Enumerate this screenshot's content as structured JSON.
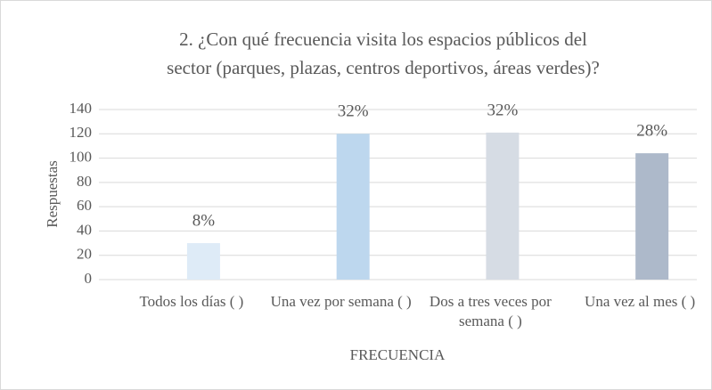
{
  "chart_data": {
    "type": "bar",
    "title": [
      "2. ¿Con qué frecuencia visita los espacios públicos del",
      "sector (parques, plazas, centros deportivos, áreas verdes)?"
    ],
    "categories": [
      "Todos los días ( )",
      "Una vez por semana ( )",
      "Dos a tres veces por semana ( )",
      "Una vez al mes ( )"
    ],
    "values": [
      30,
      120,
      121,
      104
    ],
    "percentages": [
      "8%",
      "32%",
      "32%",
      "28%"
    ],
    "colors": [
      "#deebf7",
      "#bdd7ee",
      "#d6dce4",
      "#adb9ca"
    ],
    "ylim": [
      0,
      140
    ],
    "yticks": [
      0,
      20,
      40,
      60,
      80,
      100,
      120,
      140
    ],
    "ylabel": "Respuestas",
    "xlabel": "FRECUENCIA",
    "grid": true
  }
}
